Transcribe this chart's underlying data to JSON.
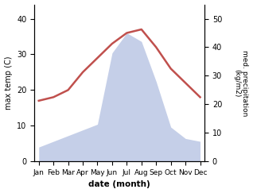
{
  "months": [
    "Jan",
    "Feb",
    "Mar",
    "Apr",
    "May",
    "Jun",
    "Jul",
    "Aug",
    "Sep",
    "Oct",
    "Nov",
    "Dec"
  ],
  "temperature": [
    17,
    18,
    20,
    25,
    29,
    33,
    36,
    37,
    32,
    26,
    22,
    18
  ],
  "precipitation": [
    5,
    7,
    9,
    11,
    13,
    38,
    45,
    42,
    28,
    12,
    8,
    7
  ],
  "temp_color": "#c0504d",
  "precip_fill_color": "#c5cfe8",
  "ylabel_left": "max temp (C)",
  "ylabel_right": "med. precipitation\n(kg/m2)",
  "xlabel": "date (month)",
  "ylim_left": [
    0,
    44
  ],
  "ylim_right": [
    0,
    55
  ],
  "yticks_left": [
    0,
    10,
    20,
    30,
    40
  ],
  "yticks_right": [
    0,
    10,
    20,
    30,
    40,
    50
  ],
  "background_color": "#ffffff",
  "linewidth": 1.8
}
